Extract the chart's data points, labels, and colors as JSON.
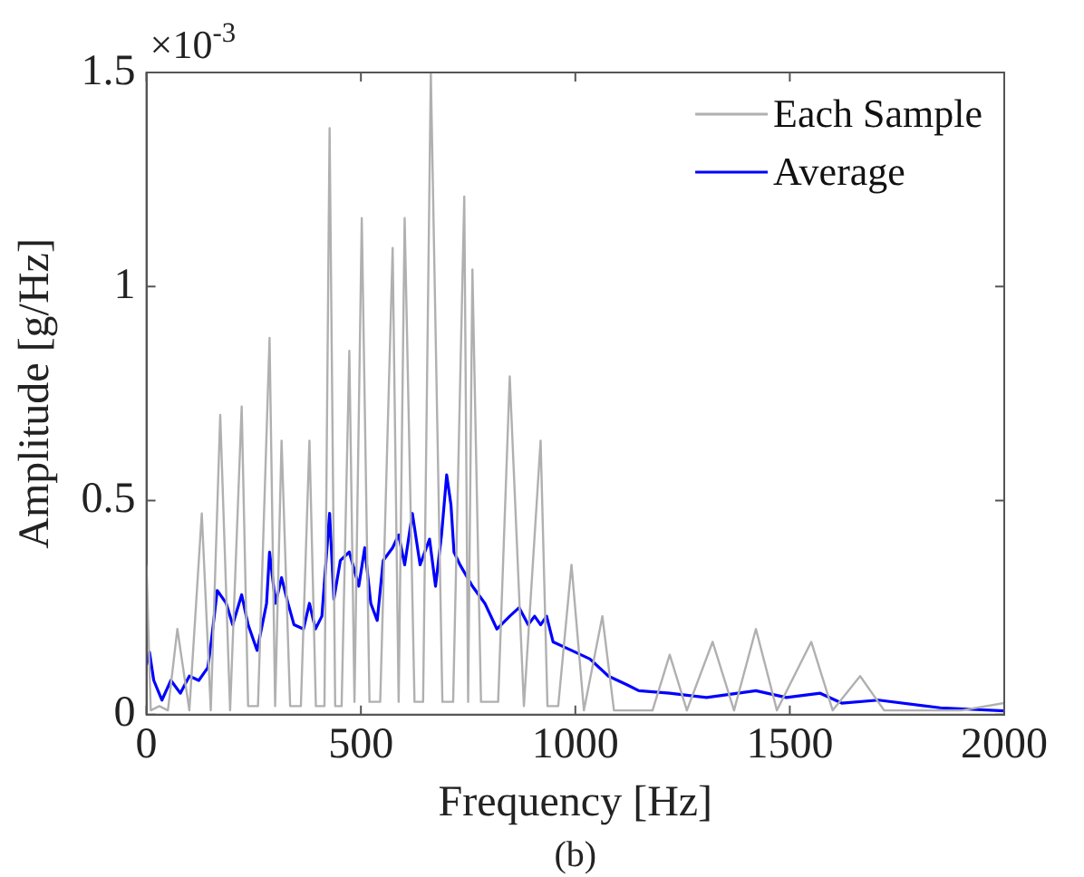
{
  "chart_data": {
    "type": "line",
    "xlabel": "Frequency [Hz]",
    "ylabel": "Amplitude [g/Hz]",
    "annotations": [
      "×10$^{-3}$",
      "(b)"
    ],
    "xlim": [
      0,
      2000
    ],
    "xticks": [
      0,
      500,
      1000,
      1500,
      2000
    ],
    "ylim": [
      0,
      1.5
    ],
    "yticks": [
      0,
      0.5,
      1,
      1.5
    ],
    "grid": false,
    "legend": "top right",
    "marker": "none",
    "line_style": "solid",
    "series": [
      {
        "name": "Each Sample",
        "color": "#b0b0b0",
        "x": [
          0,
          10,
          30,
          50,
          72,
          100,
          129,
          150,
          172,
          195,
          222,
          237,
          260,
          287,
          300,
          315,
          335,
          360,
          380,
          395,
          415,
          427,
          440,
          455,
          473,
          485,
          502,
          520,
          545,
          574,
          588,
          602,
          625,
          645,
          663,
          690,
          715,
          741,
          750,
          760,
          780,
          800,
          820,
          847,
          880,
          919,
          935,
          960,
          991,
          1020,
          1063,
          1090,
          1130,
          1180,
          1220,
          1260,
          1320,
          1370,
          1421,
          1470,
          1550,
          1600,
          1664,
          1720,
          1800,
          1900,
          2000
        ],
        "values": [
          0.35,
          0.01,
          0.02,
          0.01,
          0.2,
          0.01,
          0.47,
          0.01,
          0.7,
          0.01,
          0.72,
          0.02,
          0.02,
          0.88,
          0.02,
          0.64,
          0.02,
          0.02,
          0.64,
          0.02,
          0.02,
          1.37,
          0.02,
          0.02,
          0.85,
          0.03,
          1.16,
          0.03,
          0.03,
          1.09,
          0.03,
          1.16,
          0.03,
          0.03,
          1.5,
          0.03,
          0.03,
          1.21,
          0.03,
          1.04,
          0.03,
          0.03,
          0.03,
          0.79,
          0.02,
          0.64,
          0.02,
          0.02,
          0.35,
          0.01,
          0.23,
          0.01,
          0.01,
          0.01,
          0.14,
          0.01,
          0.17,
          0.01,
          0.2,
          0.01,
          0.17,
          0.01,
          0.09,
          0.01,
          0.01,
          0.01,
          0.027
        ]
      },
      {
        "name": "Average",
        "color": "#0000ff",
        "x": [
          0,
          7,
          17,
          36,
          57,
          79,
          100,
          122,
          143,
          151,
          165,
          186,
          201,
          222,
          237,
          258,
          280,
          287,
          301,
          315,
          330,
          344,
          366,
          380,
          394,
          409,
          427,
          437,
          452,
          473,
          495,
          509,
          523,
          538,
          552,
          574,
          588,
          602,
          620,
          638,
          660,
          674,
          688,
          700,
          710,
          717,
          731,
          760,
          789,
          817,
          847,
          869,
          890,
          905,
          919,
          933,
          948,
          991,
          1034,
          1077,
          1120,
          1148,
          1220,
          1306,
          1421,
          1492,
          1571,
          1621,
          1707,
          1851,
          2000
        ],
        "values": [
          0.116,
          0.146,
          0.08,
          0.034,
          0.08,
          0.05,
          0.09,
          0.08,
          0.11,
          0.17,
          0.29,
          0.26,
          0.21,
          0.28,
          0.21,
          0.15,
          0.26,
          0.38,
          0.26,
          0.32,
          0.26,
          0.21,
          0.2,
          0.26,
          0.2,
          0.23,
          0.47,
          0.27,
          0.36,
          0.38,
          0.3,
          0.39,
          0.26,
          0.22,
          0.36,
          0.39,
          0.42,
          0.35,
          0.47,
          0.35,
          0.41,
          0.3,
          0.42,
          0.56,
          0.49,
          0.38,
          0.35,
          0.3,
          0.26,
          0.2,
          0.23,
          0.25,
          0.21,
          0.23,
          0.21,
          0.23,
          0.17,
          0.15,
          0.13,
          0.09,
          0.07,
          0.056,
          0.05,
          0.04,
          0.056,
          0.04,
          0.05,
          0.027,
          0.034,
          0.016,
          0.009
        ]
      }
    ]
  }
}
